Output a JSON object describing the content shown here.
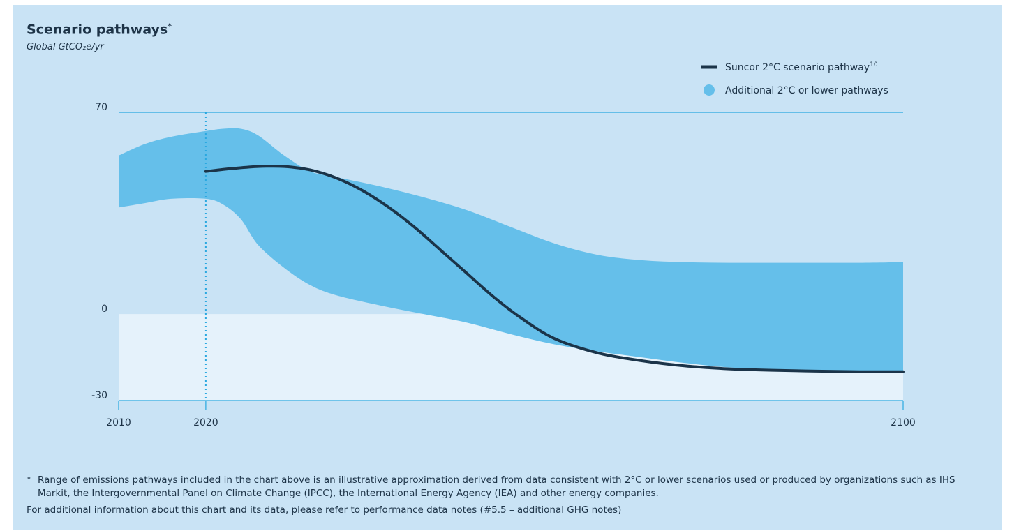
{
  "title": "Scenario pathways",
  "title_marker": "*",
  "subtitle": "Global GtCO₂e/yr",
  "colors": {
    "background": "#c9e3f5",
    "band": "#65bfea",
    "line": "#1b3449",
    "below_zero_fill": "#e5f2fb",
    "axis": "#29a8e0",
    "text": "#1d3347"
  },
  "chart_data": {
    "type": "area",
    "x_ticks": [
      "2010",
      "2020",
      "2100"
    ],
    "y_ticks": [
      "70",
      "0",
      "-30"
    ],
    "xlim": [
      2010,
      2100
    ],
    "ylim": [
      -30,
      70
    ],
    "legend_position": "top-right",
    "reference_line_x": 2020,
    "series": [
      {
        "name": "Suncor 2°C scenario pathway",
        "name_superscript": "10",
        "kind": "line",
        "x": [
          2020,
          2023,
          2026,
          2029,
          2032,
          2035,
          2038,
          2041,
          2044,
          2047,
          2050,
          2053,
          2056,
          2060,
          2065,
          2070,
          2075,
          2080,
          2085,
          2090,
          2095,
          2100
        ],
        "y": [
          49.5,
          50.5,
          51.2,
          51.2,
          50,
          47.2,
          42.8,
          37,
          30,
          22,
          14,
          6,
          -1,
          -8.5,
          -13.5,
          -16.2,
          -18,
          -19,
          -19.5,
          -19.8,
          -20,
          -20
        ]
      },
      {
        "name": "Additional 2°C or lower pathways",
        "kind": "band",
        "x": [
          2010,
          2013,
          2016,
          2020,
          2022,
          2024,
          2026,
          2029,
          2032,
          2035,
          2040,
          2045,
          2050,
          2055,
          2060,
          2065,
          2070,
          2075,
          2080,
          2085,
          2090,
          2095,
          2100
        ],
        "upper": [
          55,
          59,
          61.5,
          63.5,
          64.3,
          64.3,
          62,
          55,
          49.5,
          47.5,
          44.3,
          40.5,
          36,
          30.2,
          24.5,
          20.5,
          18.7,
          18,
          17.8,
          17.8,
          17.8,
          17.8,
          18
        ],
        "lower": [
          37,
          38.5,
          40,
          40,
          38,
          33,
          24,
          16,
          10,
          6.5,
          3,
          0,
          -3,
          -7,
          -10.5,
          -13,
          -15,
          -17,
          -18.5,
          -19.2,
          -19.7,
          -20,
          -20
        ]
      }
    ]
  },
  "footnotes": {
    "star_mark": "*",
    "star_text": "Range of emissions pathways included in the chart above is an illustrative approximation derived from data consistent with 2°C or lower scenarios used or produced by organizations such as IHS Markit, the Intergovernmental Panel on Climate Change (IPCC), the International Energy Agency (IEA) and other energy companies.",
    "additional_info": "For additional information about this chart and its data, please refer to performance data notes (#5.5 – additional GHG notes)"
  }
}
